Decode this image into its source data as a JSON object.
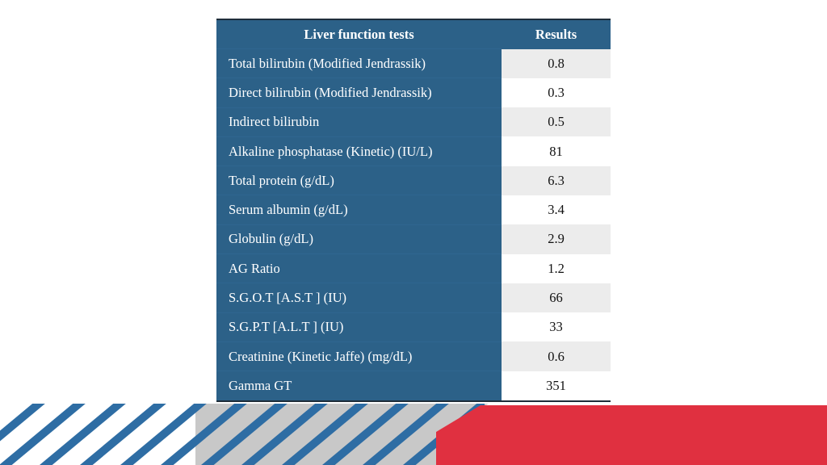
{
  "table": {
    "columns": [
      "Liver function tests",
      "Results"
    ],
    "rows": [
      [
        "Total bilirubin (Modified Jendrassik)",
        0.8
      ],
      [
        "Direct bilirubin (Modified Jendrassik)",
        0.3
      ],
      [
        "Indirect bilirubin",
        0.5
      ],
      [
        "Alkaline phosphatase (Kinetic) (IU/L)",
        81
      ],
      [
        "Total protein (g/dL)",
        6.3
      ],
      [
        "Serum albumin (g/dL)",
        3.4
      ],
      [
        "Globulin (g/dL)",
        2.9
      ],
      [
        "AG Ratio",
        1.2
      ],
      [
        "S.G.O.T [A.S.T ] (IU)",
        66
      ],
      [
        "S.G.P.T [A.L.T ] (IU)",
        33
      ],
      [
        "Creatinine (Kinetic Jaffe) (mg/dL)",
        0.6
      ],
      [
        "Gamma GT",
        351
      ]
    ]
  }
}
